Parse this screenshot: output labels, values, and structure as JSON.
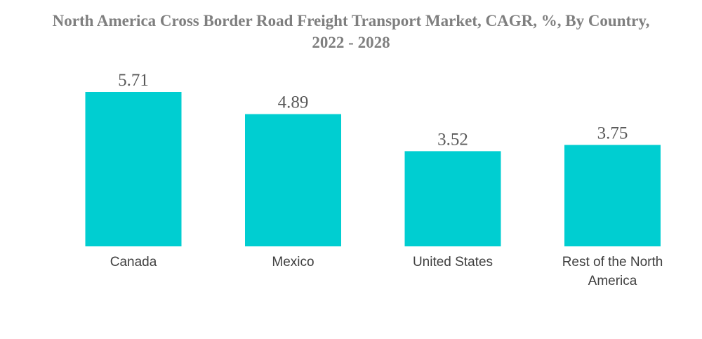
{
  "chart_data": {
    "type": "bar",
    "title": "North America Cross Border Road Freight Transport Market, CAGR, %, By Country, 2022 - 2028",
    "categories": [
      "Canada",
      "Mexico",
      "United States",
      "Rest of the North America"
    ],
    "values": [
      5.71,
      4.89,
      3.52,
      3.75
    ],
    "value_labels": [
      "5.71",
      "4.89",
      "3.52",
      "3.75"
    ],
    "xlabel": "",
    "ylabel": "",
    "ylim": [
      0,
      5.71
    ],
    "grid": false,
    "legend": "none",
    "bar_color": "#00CED1"
  }
}
